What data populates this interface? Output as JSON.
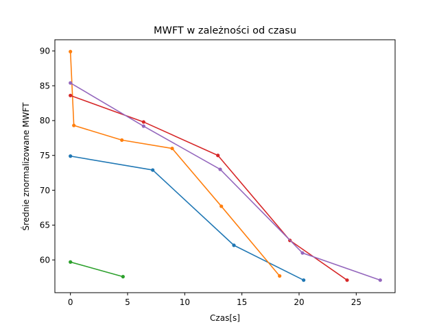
{
  "chart_data": {
    "type": "line",
    "title": "MWFT w zależności od czasu",
    "xlabel": "Czas[s]",
    "ylabel": "Średnie znormalizowane MWFT",
    "xlim": [
      -1.36,
      28.4
    ],
    "ylim": [
      55.3,
      91.6
    ],
    "xticks": [
      0,
      5,
      10,
      15,
      20,
      25
    ],
    "yticks": [
      60,
      65,
      70,
      75,
      80,
      85,
      90
    ],
    "grid": false,
    "legend": "none",
    "series": [
      {
        "color": "#1f77b4",
        "x": [
          0.0,
          7.2,
          14.3,
          20.4
        ],
        "y": [
          74.9,
          72.9,
          62.1,
          57.1
        ]
      },
      {
        "color": "#ff7f0e",
        "x": [
          0.0,
          0.3,
          4.5,
          8.9,
          13.2,
          18.3
        ],
        "y": [
          89.9,
          79.3,
          77.2,
          76.0,
          67.7,
          57.7
        ]
      },
      {
        "color": "#2ca02c",
        "x": [
          0.0,
          4.6
        ],
        "y": [
          59.7,
          57.6
        ]
      },
      {
        "color": "#d62728",
        "x": [
          0.0,
          6.4,
          12.9,
          19.2,
          24.2
        ],
        "y": [
          83.6,
          79.8,
          75.0,
          62.8,
          57.1
        ]
      },
      {
        "color": "#9467bd",
        "x": [
          0.0,
          6.4,
          13.1,
          20.3,
          27.1
        ],
        "y": [
          85.4,
          79.2,
          73.0,
          61.0,
          57.1
        ]
      }
    ]
  }
}
